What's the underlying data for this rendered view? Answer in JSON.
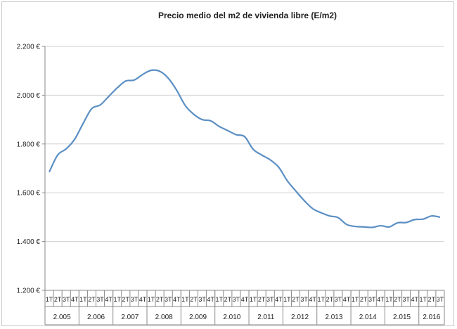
{
  "chart_data": {
    "type": "line",
    "title": "Precio medio del m2 de vivienda libre (E/m2)",
    "xlabel": "",
    "ylabel": "",
    "ylim": [
      1200,
      2200
    ],
    "yticks": [
      {
        "value": 1200,
        "label": "1.200 €"
      },
      {
        "value": 1400,
        "label": "1.400 €"
      },
      {
        "value": 1600,
        "label": "1.600 €"
      },
      {
        "value": 1800,
        "label": "1.800 €"
      },
      {
        "value": 2000,
        "label": "2.000 €"
      },
      {
        "value": 2200,
        "label": "2.200 €"
      }
    ],
    "grid": true,
    "legend": "none",
    "line_color": "#5b8fc4",
    "years": [
      {
        "label": "2.005",
        "quarters": [
          "1T",
          "2T",
          "3T",
          "4T"
        ]
      },
      {
        "label": "2.006",
        "quarters": [
          "1T",
          "2T",
          "3T",
          "4T"
        ]
      },
      {
        "label": "2.007",
        "quarters": [
          "1T",
          "2T",
          "3T",
          "4T"
        ]
      },
      {
        "label": "2.008",
        "quarters": [
          "1T",
          "2T",
          "3T",
          "4T"
        ]
      },
      {
        "label": "2.009",
        "quarters": [
          "1T",
          "2T",
          "3T",
          "4T"
        ]
      },
      {
        "label": "2.010",
        "quarters": [
          "1T",
          "2T",
          "3T",
          "4T"
        ]
      },
      {
        "label": "2.011",
        "quarters": [
          "1T",
          "2T",
          "3T",
          "4T"
        ]
      },
      {
        "label": "2.012",
        "quarters": [
          "1T",
          "2T",
          "3T",
          "4T"
        ]
      },
      {
        "label": "2.013",
        "quarters": [
          "1T",
          "2T",
          "3T",
          "4T"
        ]
      },
      {
        "label": "2.014",
        "quarters": [
          "1T",
          "2T",
          "3T",
          "4T"
        ]
      },
      {
        "label": "2.015",
        "quarters": [
          "1T",
          "2T",
          "3T",
          "4T"
        ]
      },
      {
        "label": "2.016",
        "quarters": [
          "1T",
          "2T",
          "3T"
        ]
      }
    ],
    "values": [
      1685,
      1755,
      1780,
      1820,
      1885,
      1945,
      1960,
      1995,
      2030,
      2058,
      2062,
      2085,
      2102,
      2098,
      2070,
      2020,
      1958,
      1922,
      1900,
      1895,
      1872,
      1855,
      1838,
      1830,
      1778,
      1755,
      1735,
      1705,
      1650,
      1608,
      1568,
      1535,
      1518,
      1505,
      1498,
      1470,
      1462,
      1460,
      1458,
      1465,
      1460,
      1477,
      1478,
      1490,
      1492,
      1505,
      1500
    ]
  }
}
